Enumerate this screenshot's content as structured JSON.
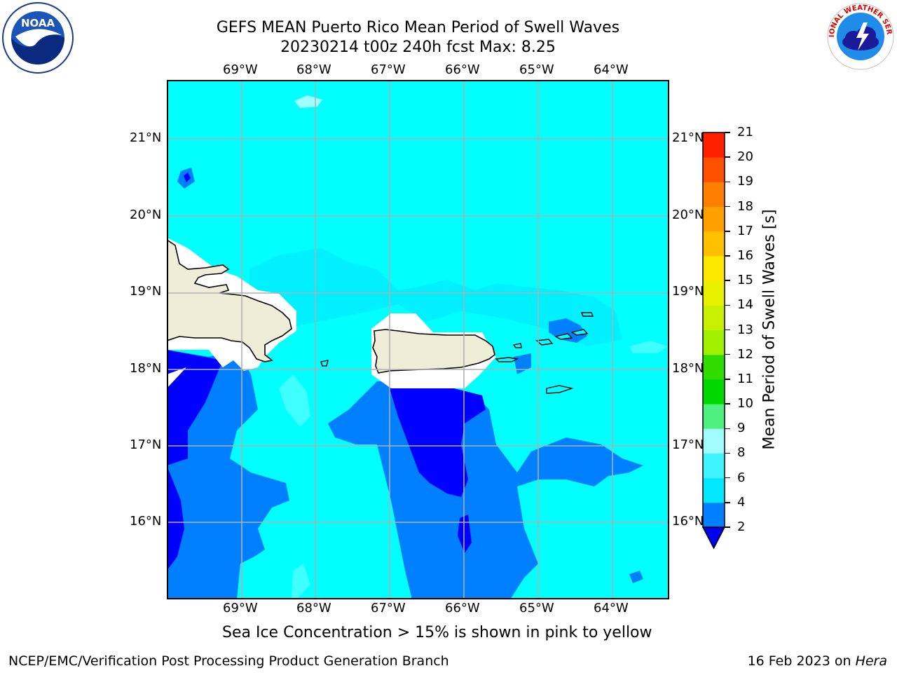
{
  "title": {
    "line1": "GEFS MEAN Puerto Rico Mean Period of Swell Waves",
    "line2": "20230214 t00z 240h fcst   Max: 8.25"
  },
  "logos": {
    "left": "NOAA",
    "right": "NATIONAL WEATHER SERVICE"
  },
  "axes": {
    "lon_labels": [
      "69°W",
      "68°W",
      "67°W",
      "66°W",
      "65°W",
      "64°W"
    ],
    "lat_labels": [
      "21°N",
      "20°N",
      "19°N",
      "18°N",
      "17°N",
      "16°N"
    ]
  },
  "colorbar": {
    "label": "Mean Period of Swell Waves [s]",
    "ticks": [
      "2",
      "4",
      "6",
      "8",
      "9",
      "10",
      "11",
      "12",
      "13",
      "14",
      "15",
      "16",
      "17",
      "18",
      "19",
      "20",
      "21"
    ],
    "colors": [
      "#0000f0",
      "#0080ff",
      "#00e8ff",
      "#40f4ff",
      "#a0fcff",
      "#50f080",
      "#00d800",
      "#30dc00",
      "#a0f000",
      "#c8f000",
      "#e8f000",
      "#ffe800",
      "#ffc000",
      "#ffa000",
      "#ff8000",
      "#ff5000",
      "#ff2000",
      "#ff0000"
    ]
  },
  "caption": "Sea Ice Concentration > 15% is shown in pink to yellow",
  "footer": {
    "left": "NCEP/EMC/Verification Post Processing Product Generation Branch",
    "right_date": "16 Feb 2023 on ",
    "right_host": "Hera"
  }
}
